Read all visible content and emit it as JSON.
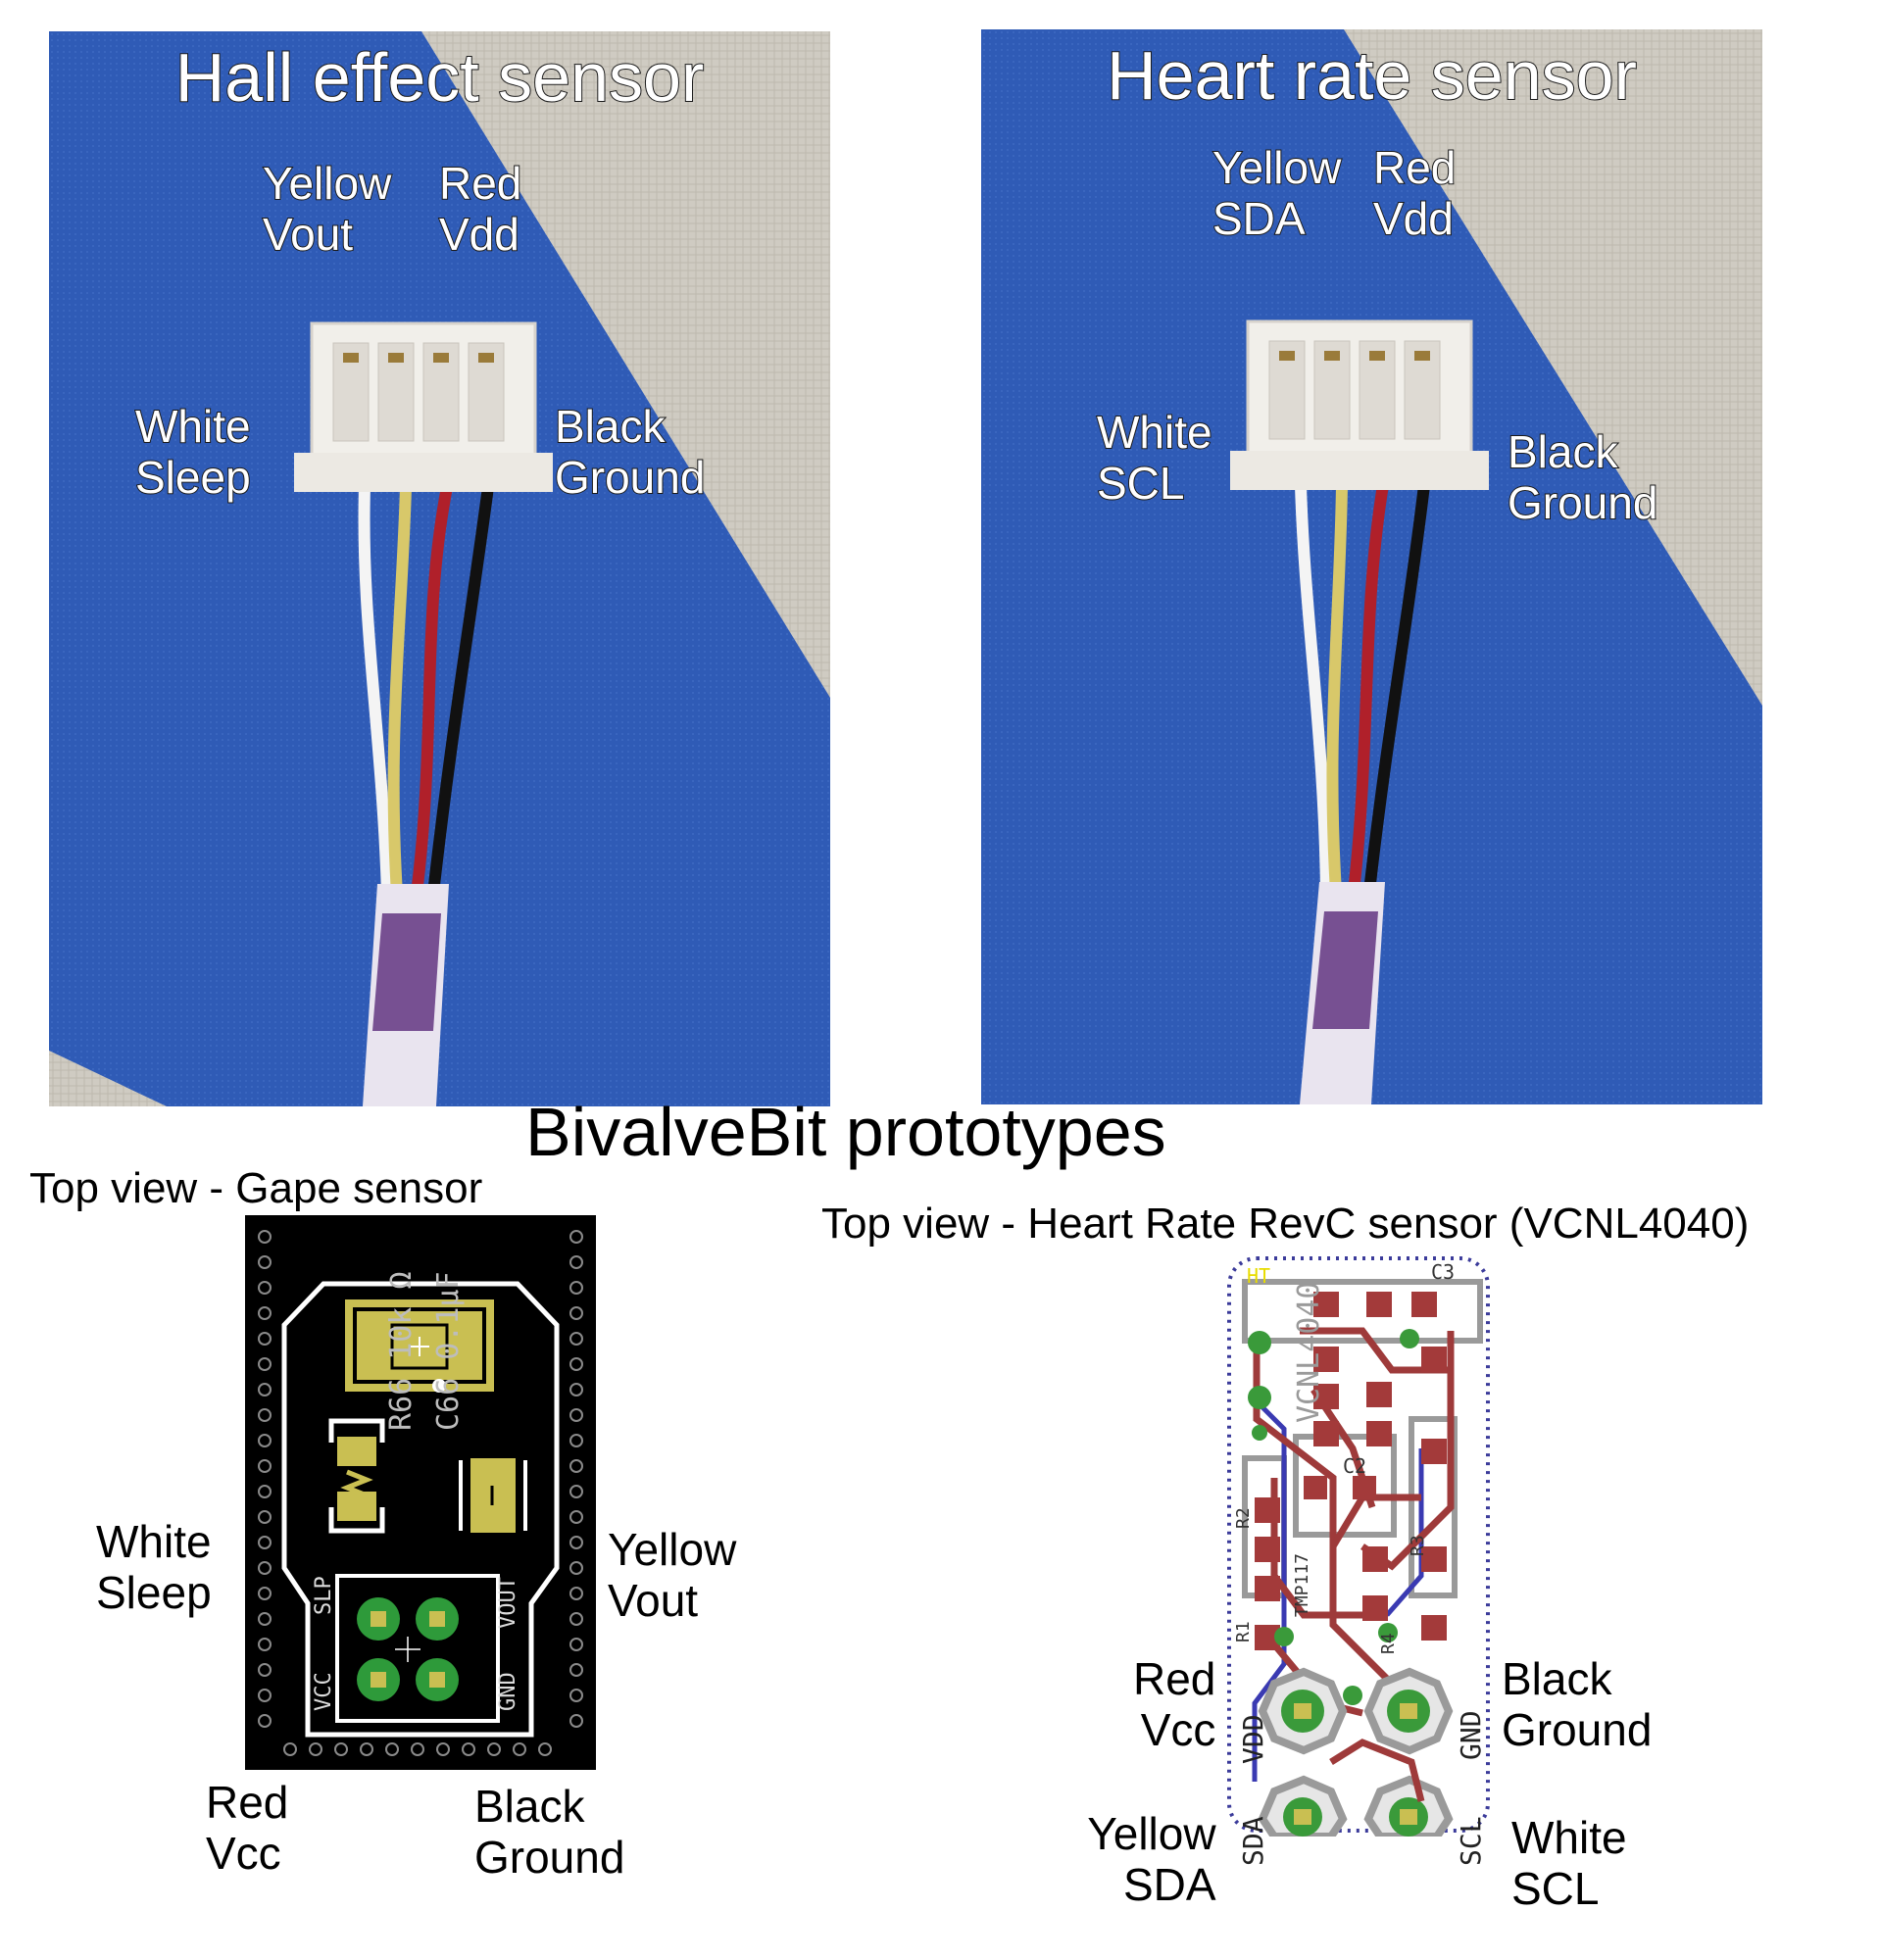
{
  "main_title": "BivalveBit prototypes",
  "hall_photo": {
    "title": "Hall effect sensor",
    "labels": {
      "yellow": [
        "Yellow",
        "Vout"
      ],
      "red": [
        "Red",
        "Vdd"
      ],
      "white": [
        "White",
        "Sleep"
      ],
      "black": [
        "Black",
        "Ground"
      ]
    }
  },
  "heart_photo": {
    "title": "Heart rate sensor",
    "labels": {
      "yellow": [
        "Yellow",
        "SDA"
      ],
      "red": [
        "Red",
        "Vdd"
      ],
      "white": [
        "White",
        "SCL"
      ],
      "black": [
        "Black",
        "Ground"
      ]
    }
  },
  "gape_board": {
    "caption": "Top view - Gape sensor",
    "component_labels": [
      "R66 10k Ω",
      "C66 0.1µF"
    ],
    "pin_labels": [
      "SLP",
      "VOUT",
      "VCC",
      "GND"
    ],
    "labels": {
      "white": [
        "White",
        "Sleep"
      ],
      "yellow": [
        "Yellow",
        "Vout"
      ],
      "red": [
        "Red",
        "Vcc"
      ],
      "black": [
        "Black",
        "Ground"
      ]
    }
  },
  "heart_board": {
    "caption": "Top view - Heart Rate RevC sensor (VCNL4040)",
    "component_labels": [
      "VCNL4040",
      "C3",
      "C2",
      "R2",
      "R1",
      "R3",
      "R4",
      "TMP117",
      "HT"
    ],
    "pin_labels": [
      "VDD",
      "GND",
      "SDA",
      "SCL"
    ],
    "labels": {
      "red": [
        "Red",
        "Vcc"
      ],
      "black": [
        "Black",
        "Ground"
      ],
      "yellow": [
        "Yellow",
        "SDA"
      ],
      "white": [
        "White",
        "SCL"
      ]
    }
  },
  "colors": {
    "tape_blue": "#2f5bb6",
    "mat_gray": "#cfcbc2",
    "pcb_black": "#000000",
    "copper_red": "#a33a3a",
    "pad_green": "#3a9a3a",
    "silk_yellow": "#f2e500"
  }
}
